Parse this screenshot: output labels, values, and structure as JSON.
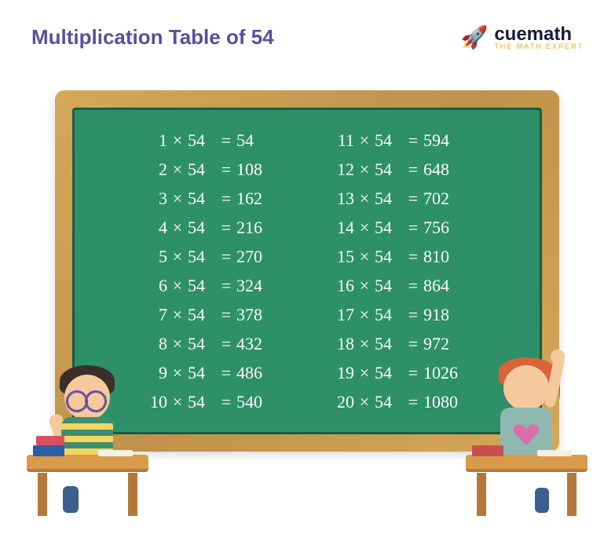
{
  "title": "Multiplication Table of 54",
  "brand": {
    "name": "cuemath",
    "tagline": "THE MATH EXPERT"
  },
  "table": {
    "multiplicand": 54,
    "left_column": [
      {
        "a": 1,
        "b": 54,
        "r": 54
      },
      {
        "a": 2,
        "b": 54,
        "r": 108
      },
      {
        "a": 3,
        "b": 54,
        "r": 162
      },
      {
        "a": 4,
        "b": 54,
        "r": 216
      },
      {
        "a": 5,
        "b": 54,
        "r": 270
      },
      {
        "a": 6,
        "b": 54,
        "r": 324
      },
      {
        "a": 7,
        "b": 54,
        "r": 378
      },
      {
        "a": 8,
        "b": 54,
        "r": 432
      },
      {
        "a": 9,
        "b": 54,
        "r": 486
      },
      {
        "a": 10,
        "b": 54,
        "r": 540
      }
    ],
    "right_column": [
      {
        "a": 11,
        "b": 54,
        "r": 594
      },
      {
        "a": 12,
        "b": 54,
        "r": 648
      },
      {
        "a": 13,
        "b": 54,
        "r": 702
      },
      {
        "a": 14,
        "b": 54,
        "r": 756
      },
      {
        "a": 15,
        "b": 54,
        "r": 810
      },
      {
        "a": 16,
        "b": 54,
        "r": 864
      },
      {
        "a": 17,
        "b": 54,
        "r": 918
      },
      {
        "a": 18,
        "b": 54,
        "r": 972
      },
      {
        "a": 19,
        "b": 54,
        "r": 1026
      },
      {
        "a": 20,
        "b": 54,
        "r": 1080
      }
    ]
  },
  "colors": {
    "title": "#5b4e9e",
    "chalkboard": "#2d9068",
    "frame": "#d4a857",
    "chalk_text": "#ffffff",
    "brand_text": "#1a1a3e",
    "tagline": "#f5a623"
  }
}
